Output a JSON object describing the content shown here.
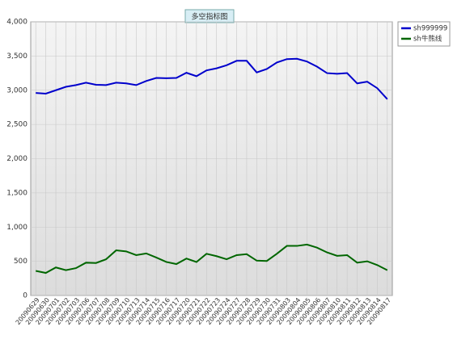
{
  "chart_data": {
    "type": "line",
    "title": "多空指标图",
    "categories": [
      "20090629",
      "20090630",
      "20090701",
      "20090702",
      "20090703",
      "20090706",
      "20090707",
      "20090708",
      "20090709",
      "20090710",
      "20090713",
      "20090714",
      "20090715",
      "20090716",
      "20090717",
      "20090720",
      "20090721",
      "20090722",
      "20090723",
      "20090724",
      "20090727",
      "20090728",
      "20090729",
      "20090730",
      "20090731",
      "20090803",
      "20090804",
      "20090805",
      "20090806",
      "20090807",
      "20090810",
      "20090811",
      "20090812",
      "20090813",
      "20090814",
      "20090817"
    ],
    "series": [
      {
        "name": "sh999999",
        "color": "#0000cc",
        "values": [
          2960,
          2950,
          3000,
          3050,
          3075,
          3110,
          3080,
          3075,
          3110,
          3100,
          3075,
          3135,
          3180,
          3175,
          3180,
          3255,
          3205,
          3290,
          3320,
          3365,
          3430,
          3430,
          3260,
          3310,
          3405,
          3455,
          3460,
          3420,
          3345,
          3250,
          3240,
          3250,
          3100,
          3125,
          3030,
          2870
        ]
      },
      {
        "name": "sh牛熊线",
        "color": "#006600",
        "values": [
          360,
          330,
          410,
          370,
          400,
          480,
          475,
          530,
          660,
          645,
          590,
          615,
          555,
          490,
          460,
          540,
          490,
          610,
          575,
          530,
          590,
          605,
          510,
          505,
          610,
          725,
          725,
          745,
          700,
          630,
          580,
          590,
          480,
          500,
          445,
          370
        ]
      }
    ],
    "ylim": [
      0,
      4000
    ],
    "yticks": [
      0,
      500,
      {
        "value": 1000,
        "label": "1,000"
      },
      {
        "value": 1500,
        "label": "1,500"
      },
      {
        "value": 2000,
        "label": "2,000"
      },
      {
        "value": 2500,
        "label": "2,500"
      },
      {
        "value": 3000,
        "label": "3,000"
      },
      {
        "value": 3500,
        "label": "3,500"
      },
      {
        "value": 4000,
        "label": "4,000"
      }
    ],
    "grid": true,
    "legend": "top-right"
  }
}
